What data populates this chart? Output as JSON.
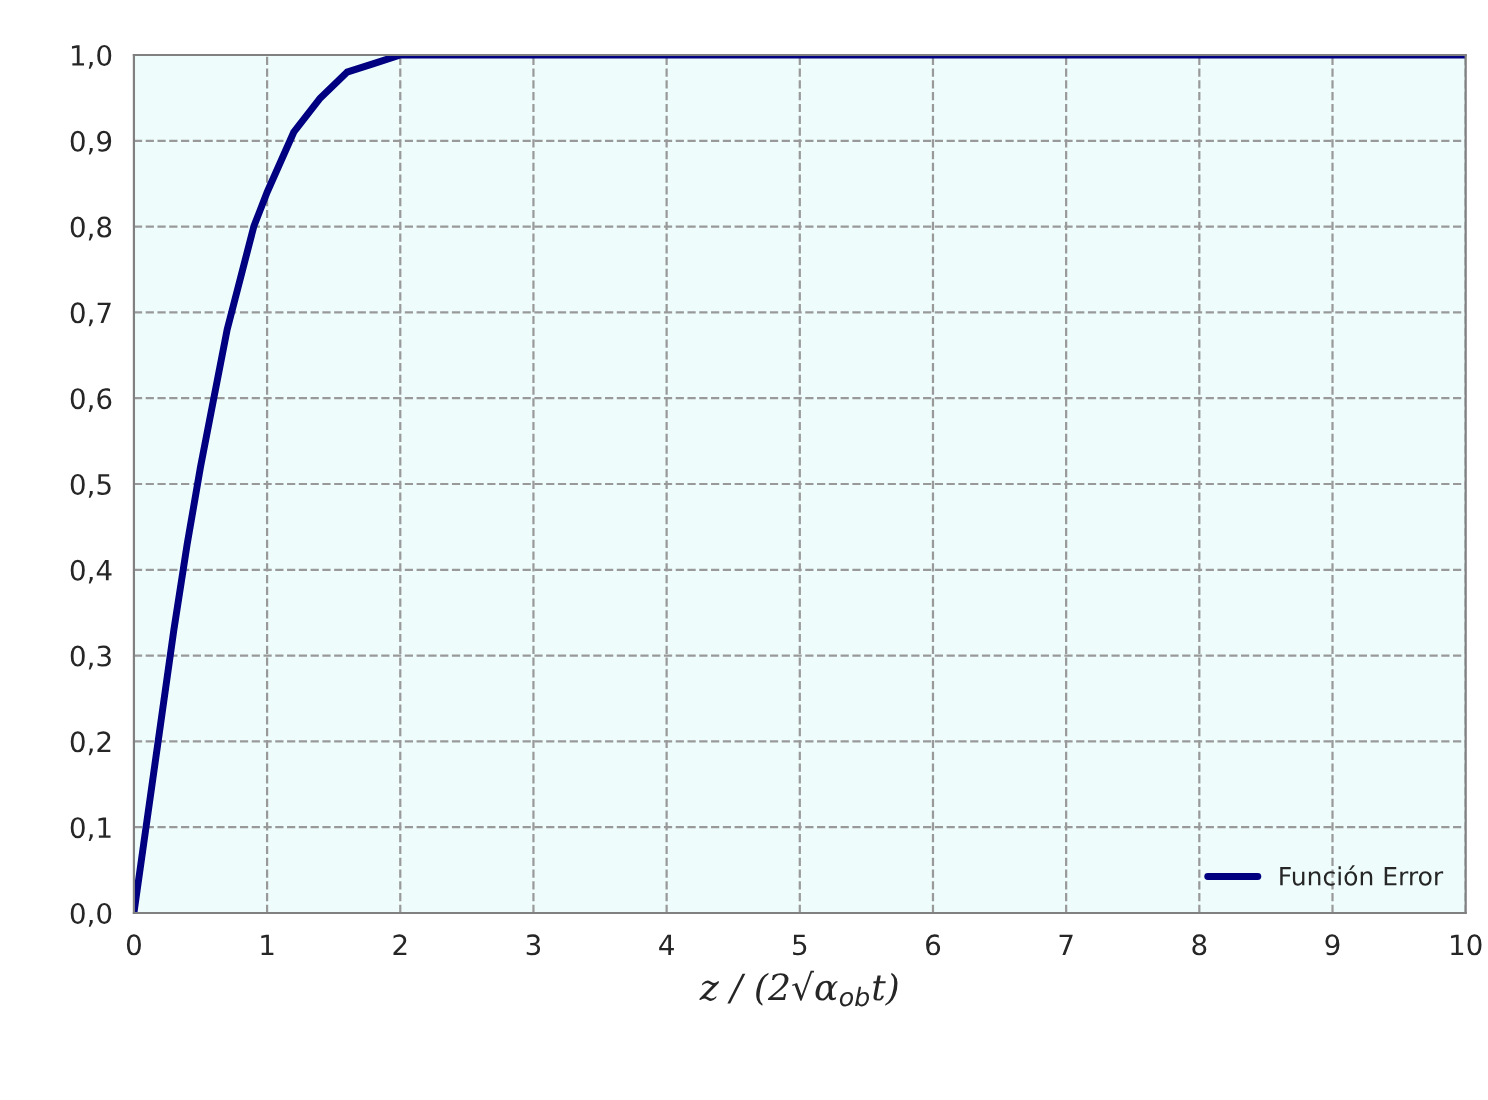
{
  "chart_data": {
    "type": "line",
    "xlabel": "z / (2√α$_{ob}$t)",
    "x": [
      0,
      0.1,
      0.2,
      0.3,
      0.4,
      0.5,
      0.6,
      0.7,
      0.8,
      0.9,
      1.0,
      1.2,
      1.4,
      1.6,
      1.8,
      2.0,
      2.5,
      3,
      10
    ],
    "series": [
      {
        "name": "Función Error",
        "color": "#000080",
        "values": [
          0,
          0.11,
          0.22,
          0.33,
          0.43,
          0.52,
          0.6,
          0.68,
          0.74,
          0.8,
          0.84,
          0.91,
          0.95,
          0.98,
          0.99,
          1.0,
          1.0,
          1.0,
          1.0
        ]
      }
    ],
    "xlim": [
      0,
      10
    ],
    "xticks": [
      0,
      1,
      2,
      3,
      4,
      5,
      6,
      7,
      8,
      9,
      10
    ],
    "ylim": [
      0,
      1
    ],
    "yticks": [
      {
        "value": 0,
        "label": "0,0"
      },
      {
        "value": 0.1,
        "label": "0,1"
      },
      {
        "value": 0.2,
        "label": "0,2"
      },
      {
        "value": 0.3,
        "label": "0,3"
      },
      {
        "value": 0.4,
        "label": "0,4"
      },
      {
        "value": 0.5,
        "label": "0,5"
      },
      {
        "value": 0.6,
        "label": "0,6"
      },
      {
        "value": 0.7,
        "label": "0,7"
      },
      {
        "value": 0.8,
        "label": "0,8"
      },
      {
        "value": 0.9,
        "label": "0,9"
      },
      {
        "value": 1.0,
        "label": "1,0"
      }
    ],
    "grid": true,
    "legend": "bottom right",
    "marker": "none",
    "line_style": "solid"
  }
}
